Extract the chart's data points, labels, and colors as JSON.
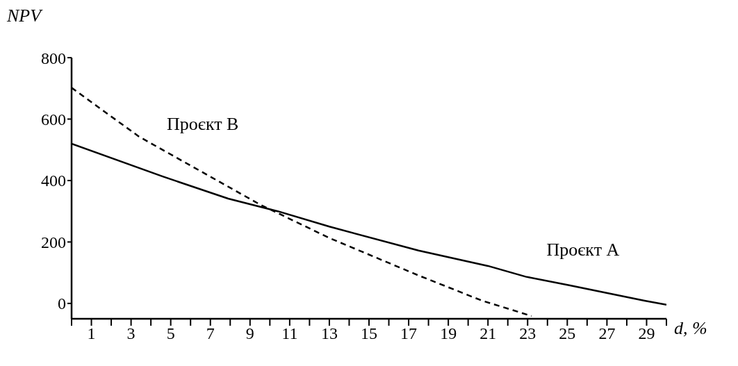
{
  "chart_data": {
    "type": "line",
    "xlabel": "d, %",
    "ylabel": "NPV",
    "xlim": [
      0,
      30
    ],
    "ylim": [
      -50,
      800
    ],
    "xticks": [
      {
        "value": 0,
        "label": null
      },
      1,
      {
        "value": 2,
        "label": null
      },
      3,
      {
        "value": 4,
        "label": null
      },
      5,
      {
        "value": 6,
        "label": null
      },
      7,
      {
        "value": 8,
        "label": null
      },
      9,
      {
        "value": 10,
        "label": null
      },
      11,
      {
        "value": 12,
        "label": null
      },
      13,
      {
        "value": 14,
        "label": null
      },
      15,
      {
        "value": 16,
        "label": null
      },
      17,
      {
        "value": 18,
        "label": null
      },
      19,
      {
        "value": 20,
        "label": null
      },
      21,
      {
        "value": 22,
        "label": null
      },
      23,
      {
        "value": 24,
        "label": null
      },
      25,
      {
        "value": 26,
        "label": null
      },
      27,
      {
        "value": 28,
        "label": null
      },
      29,
      {
        "value": 30,
        "label": null
      }
    ],
    "yticks": [
      0,
      200,
      400,
      600,
      800
    ],
    "marker": "none",
    "series": [
      {
        "name": "Проєкт A",
        "color": "#000000",
        "line_style": "solid",
        "x": [
          0,
          4.6,
          7.9,
          10.4,
          13,
          17.5,
          21,
          22.9,
          25.1,
          28.9,
          30
        ],
        "values": [
          520,
          413,
          341,
          300,
          250,
          172,
          122,
          87,
          59,
          9,
          -4
        ]
      },
      {
        "name": "Проєкт B",
        "color": "#000000",
        "line_style": "dashed",
        "x": [
          0,
          3.4,
          9.5,
          13,
          17.5,
          20.7,
          23.2
        ],
        "values": [
          702,
          543,
          322,
          213,
          91,
          9,
          -41
        ]
      }
    ]
  }
}
